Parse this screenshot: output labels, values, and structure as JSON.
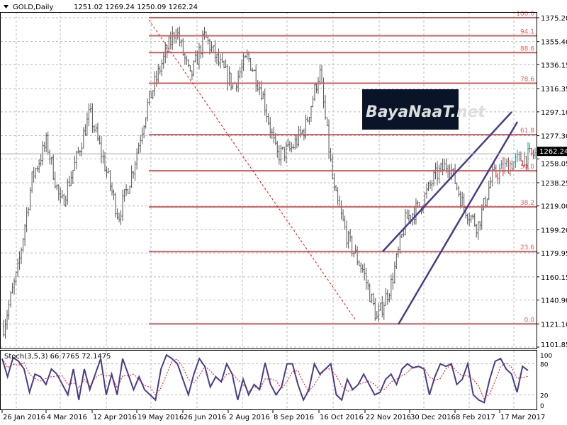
{
  "header": {
    "symbol": "GOLD,Daily",
    "ohlc": "1251.02 1269.24 1250.09 1262.24"
  },
  "watermark": "BayaNaaT.net",
  "colors": {
    "fib": "#cd5c5c",
    "channel": "#483d8b",
    "trend": "#ff0000",
    "stoch_main": "#483d8b",
    "stoch_signal": "#ff0000",
    "current": "#000000"
  },
  "chart_data": [
    {
      "type": "ohlc",
      "title": "GOLD,Daily",
      "ylim": [
        1101.85,
        1385
      ],
      "y_ticks": [
        "1375.20",
        "1355.40",
        "1336.15",
        "1316.35",
        "1297.10",
        "1277.30",
        "1258.05",
        "1238.25",
        "1219.00",
        "1199.20",
        "1179.95",
        "1160.15",
        "1140.90",
        "1121.10",
        "1101.85"
      ],
      "x_ticks": [
        "26 Jan 2016",
        "4 Mar 2016",
        "12 Apr 2016",
        "19 May 2016",
        "26 Jun 2016",
        "2 Aug 2016",
        "8 Sep 2016",
        "16 Oct 2016",
        "22 Nov 2016",
        "30 Dec 2016",
        "8 Feb 2017",
        "17 Mar 2017"
      ],
      "current_price": "1262.24",
      "approx_close_path": [
        1119,
        1166,
        1243,
        1272,
        1219,
        1255,
        1296,
        1255,
        1210,
        1249,
        1302,
        1337,
        1366,
        1325,
        1360,
        1337,
        1319,
        1343,
        1313,
        1261,
        1266,
        1284,
        1331,
        1231,
        1190,
        1166,
        1125,
        1155,
        1208,
        1219,
        1243,
        1255,
        1219,
        1202,
        1243,
        1252,
        1258,
        1262
      ],
      "fibonacci": {
        "high": 1375.2,
        "low": 1121.1,
        "levels": [
          "0.0",
          "23.6",
          "38.2",
          "50.0",
          "61.8",
          "78.6",
          "88.6",
          "94.1",
          "100.0"
        ]
      }
    },
    {
      "type": "line",
      "title": "Stoch(3,5,3) 66.7765 72.1475",
      "ylim": [
        0,
        100
      ],
      "y_ticks": [
        "100",
        "80",
        "20",
        "0"
      ],
      "k_values": [
        90,
        55,
        92,
        85,
        70,
        25,
        60,
        55,
        40,
        70,
        60,
        40,
        20,
        70,
        10,
        70,
        30,
        60,
        90,
        20,
        60,
        20,
        90,
        60,
        30,
        55,
        30,
        20,
        10,
        70,
        97,
        90,
        80,
        50,
        20,
        60,
        90,
        75,
        35,
        55,
        45,
        80,
        60,
        10,
        50,
        20,
        40,
        30,
        82,
        40,
        20,
        35,
        80,
        80,
        40,
        10,
        30,
        80,
        60,
        70,
        80,
        20,
        10,
        50,
        30,
        40,
        60,
        40,
        20,
        25,
        50,
        60,
        40,
        70,
        80,
        72,
        75,
        70,
        20,
        55,
        80,
        75,
        80,
        40,
        50,
        80,
        20,
        10,
        5,
        50,
        85,
        90,
        70,
        60,
        25,
        75,
        67
      ]
    }
  ]
}
